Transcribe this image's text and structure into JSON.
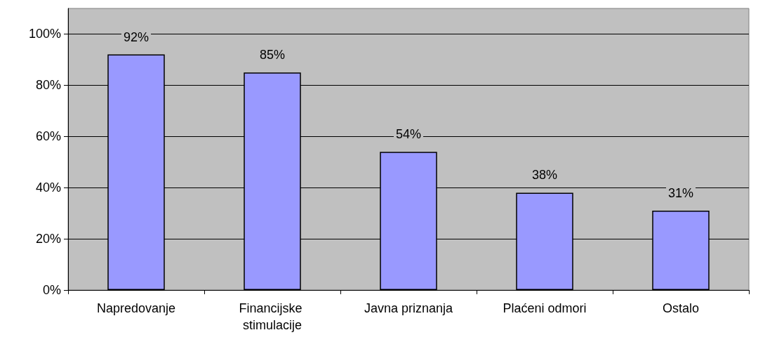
{
  "chart_data": {
    "type": "bar",
    "categories": [
      "Napredovanje",
      "Financijske stimulacije",
      "Javna priznanja",
      "Plaćeni odmori",
      "Ostalo"
    ],
    "values": [
      92,
      85,
      54,
      38,
      31
    ],
    "value_labels": [
      "92%",
      "85%",
      "54%",
      "38%",
      "31%"
    ],
    "color": "#9999ff",
    "ylim": [
      0,
      110
    ],
    "yticks": [
      {
        "value": 0,
        "label": "0%"
      },
      {
        "value": 20,
        "label": "20%"
      },
      {
        "value": 40,
        "label": "40%"
      },
      {
        "value": 60,
        "label": "60%"
      },
      {
        "value": 80,
        "label": "80%"
      },
      {
        "value": 100,
        "label": "100%"
      }
    ],
    "grid": "y"
  }
}
